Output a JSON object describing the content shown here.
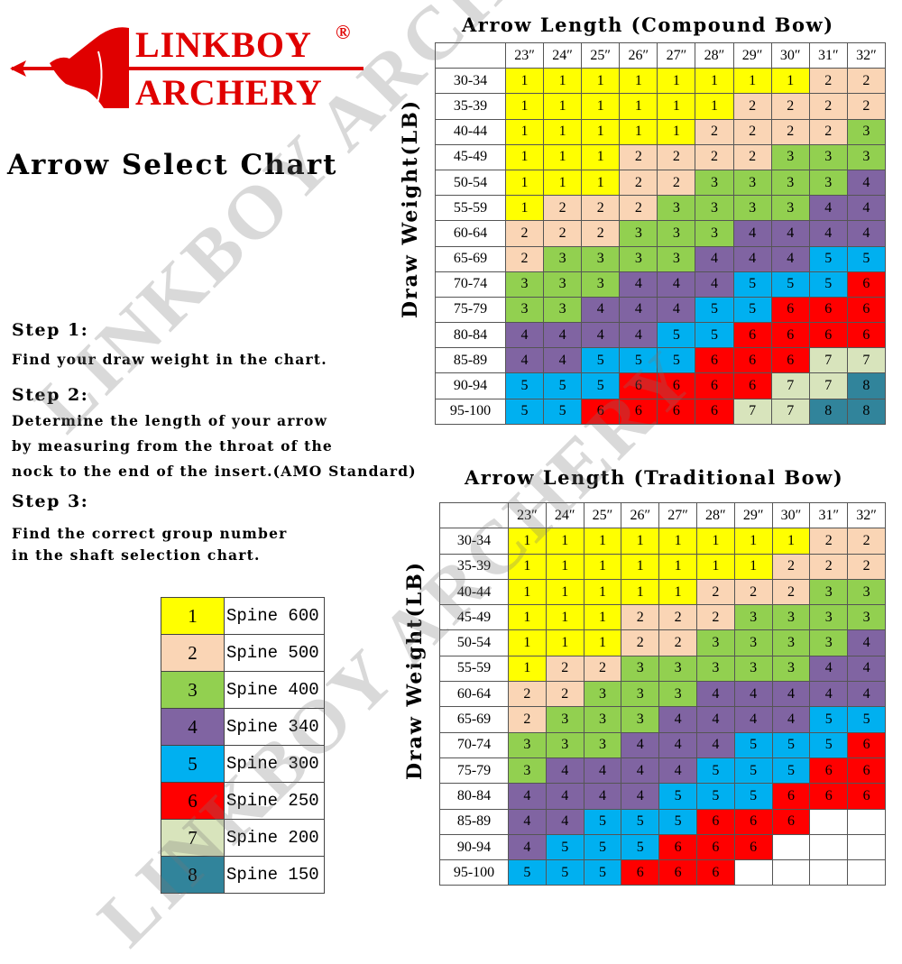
{
  "logo": {
    "line1": "LINKBOY",
    "line2": "ARCHERY",
    "registered": "®",
    "color": "#e00000"
  },
  "title": "Arrow Select Chart",
  "steps": [
    {
      "heading": "Step 1:",
      "lines": [
        "Find your draw weight in the chart."
      ]
    },
    {
      "heading": "Step 2:",
      "lines": [
        "Determine the length of your arrow",
        "by measuring from the throat of the",
        "nock to the end of the insert.(AMO Standard)"
      ]
    },
    {
      "heading": "Step 3:",
      "lines": [
        "Find the correct group number",
        "in the shaft selection chart."
      ]
    }
  ],
  "group_colors": {
    "1": "#ffff00",
    "2": "#fad5b5",
    "3": "#92d050",
    "4": "#8064a2",
    "5": "#00b0f0",
    "6": "#ff0000",
    "7": "#d8e4bc",
    "8": "#31849b"
  },
  "legend": [
    {
      "group": "1",
      "label": "Spine 600"
    },
    {
      "group": "2",
      "label": "Spine 500"
    },
    {
      "group": "3",
      "label": "Spine 400"
    },
    {
      "group": "4",
      "label": "Spine 340"
    },
    {
      "group": "5",
      "label": "Spine 300"
    },
    {
      "group": "6",
      "label": "Spine 250"
    },
    {
      "group": "7",
      "label": "Spine 200"
    },
    {
      "group": "8",
      "label": "Spine 150"
    }
  ],
  "watermark": "LINKBOY ARCHERY",
  "compound": {
    "title": "Arrow Length (Compound Bow)",
    "row_axis_label": "Draw Weight(LB)",
    "columns": [
      "23″",
      "24″",
      "25″",
      "26″",
      "27″",
      "28″",
      "29″",
      "30″",
      "31″",
      "32″"
    ],
    "rows": [
      "30-34",
      "35-39",
      "40-44",
      "45-49",
      "50-54",
      "55-59",
      "60-64",
      "65-69",
      "70-74",
      "75-79",
      "80-84",
      "85-89",
      "90-94",
      "95-100"
    ],
    "values": [
      [
        1,
        1,
        1,
        1,
        1,
        1,
        1,
        1,
        2,
        2
      ],
      [
        1,
        1,
        1,
        1,
        1,
        1,
        2,
        2,
        2,
        2
      ],
      [
        1,
        1,
        1,
        1,
        1,
        2,
        2,
        2,
        2,
        3
      ],
      [
        1,
        1,
        1,
        2,
        2,
        2,
        2,
        3,
        3,
        3
      ],
      [
        1,
        1,
        1,
        2,
        2,
        3,
        3,
        3,
        3,
        4
      ],
      [
        1,
        2,
        2,
        2,
        3,
        3,
        3,
        3,
        4,
        4
      ],
      [
        2,
        2,
        2,
        3,
        3,
        3,
        4,
        4,
        4,
        4
      ],
      [
        2,
        3,
        3,
        3,
        3,
        4,
        4,
        4,
        5,
        5
      ],
      [
        3,
        3,
        3,
        4,
        4,
        4,
        5,
        5,
        5,
        6
      ],
      [
        3,
        3,
        4,
        4,
        4,
        5,
        5,
        6,
        6,
        6
      ],
      [
        4,
        4,
        4,
        4,
        5,
        5,
        6,
        6,
        6,
        6
      ],
      [
        4,
        4,
        5,
        5,
        5,
        6,
        6,
        6,
        7,
        7
      ],
      [
        5,
        5,
        5,
        6,
        6,
        6,
        6,
        7,
        7,
        8
      ],
      [
        5,
        5,
        6,
        6,
        6,
        6,
        7,
        7,
        8,
        8
      ]
    ]
  },
  "traditional": {
    "title": "Arrow Length  (Traditional Bow)",
    "row_axis_label": "Draw Weight(LB)",
    "columns": [
      "23″",
      "24″",
      "25″",
      "26″",
      "27″",
      "28″",
      "29″",
      "30″",
      "31″",
      "32″"
    ],
    "rows": [
      "30-34",
      "35-39",
      "40-44",
      "45-49",
      "50-54",
      "55-59",
      "60-64",
      "65-69",
      "70-74",
      "75-79",
      "80-84",
      "85-89",
      "90-94",
      "95-100"
    ],
    "values": [
      [
        1,
        1,
        1,
        1,
        1,
        1,
        1,
        1,
        2,
        2
      ],
      [
        1,
        1,
        1,
        1,
        1,
        1,
        1,
        2,
        2,
        2
      ],
      [
        1,
        1,
        1,
        1,
        1,
        2,
        2,
        2,
        3,
        3
      ],
      [
        1,
        1,
        1,
        2,
        2,
        2,
        3,
        3,
        3,
        3
      ],
      [
        1,
        1,
        1,
        2,
        2,
        3,
        3,
        3,
        3,
        4
      ],
      [
        1,
        2,
        2,
        3,
        3,
        3,
        3,
        3,
        4,
        4
      ],
      [
        2,
        2,
        3,
        3,
        3,
        4,
        4,
        4,
        4,
        4
      ],
      [
        2,
        3,
        3,
        3,
        4,
        4,
        4,
        4,
        5,
        5
      ],
      [
        3,
        3,
        3,
        4,
        4,
        4,
        5,
        5,
        5,
        6
      ],
      [
        3,
        4,
        4,
        4,
        4,
        5,
        5,
        5,
        6,
        6
      ],
      [
        4,
        4,
        4,
        4,
        5,
        5,
        5,
        6,
        6,
        6
      ],
      [
        4,
        4,
        5,
        5,
        5,
        6,
        6,
        6,
        null,
        null
      ],
      [
        4,
        5,
        5,
        5,
        6,
        6,
        6,
        null,
        null,
        null
      ],
      [
        5,
        5,
        5,
        6,
        6,
        6,
        null,
        null,
        null,
        null
      ]
    ]
  }
}
